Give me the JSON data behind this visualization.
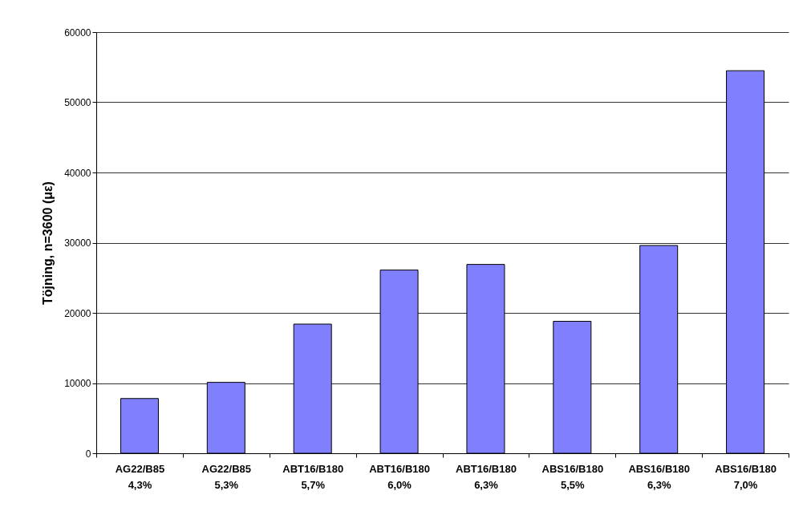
{
  "chart_data": {
    "type": "bar",
    "ylabel": "Töjning, n=3600 (με)",
    "categories": [
      "AG22/B85\n4,3%",
      "AG22/B85\n5,3%",
      "ABT16/B180\n5,7%",
      "ABT16/B180\n6,0%",
      "ABT16/B180\n6,3%",
      "ABS16/B180\n5,5%",
      "ABS16/B180\n6,3%",
      "ABS16/B180\n7,0%"
    ],
    "values": [
      7800,
      10100,
      18400,
      26100,
      26900,
      18800,
      29600,
      54500
    ],
    "color": "#8080ff",
    "ylim": [
      0,
      60000
    ],
    "yticks": [
      0,
      10000,
      20000,
      30000,
      40000,
      50000,
      60000
    ],
    "grid": "y"
  }
}
